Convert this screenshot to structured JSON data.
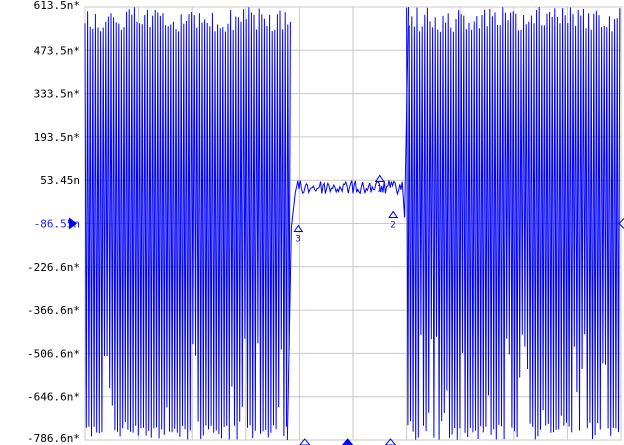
{
  "window": {
    "title": ""
  },
  "y_axis": {
    "labels": [
      "613.5n*",
      "473.5n*",
      "333.5n*",
      "193.5n*",
      "53.45n",
      "-86.55n",
      "-226.6n*",
      "-366.6n*",
      "-506.6n*",
      "-646.6n*",
      "-786.6n*"
    ],
    "reference_label_index": 5
  },
  "markers": [
    {
      "label": "1",
      "x_frac": 0.55
    },
    {
      "label": "2",
      "x_frac": 0.575
    },
    {
      "label": "3",
      "x_frac": 0.398
    }
  ],
  "chart_data": {
    "type": "line",
    "xlabel": "",
    "ylabel": "",
    "ylim": [
      -786.6,
      613.5
    ],
    "y_ticks": [
      613.5,
      473.5,
      333.5,
      193.5,
      53.45,
      -86.55,
      -226.6,
      -366.6,
      -506.6,
      -646.6,
      -786.6
    ],
    "grid": true,
    "series": [
      {
        "name": "",
        "noise_segments": [
          {
            "x_start": 0.0,
            "x_end": 0.385,
            "y_min": -786.6,
            "y_max": 613.5
          },
          {
            "x_start": 0.6,
            "x_end": 1.0,
            "y_min": -786.6,
            "y_max": 613.5
          }
        ],
        "signal_segment": {
          "x_start": 0.385,
          "x_end": 0.6,
          "level": 30.0
        }
      }
    ]
  },
  "colors": {
    "trace": "#0000ff",
    "grid": "#c8c8c8",
    "marker": "#0000ff",
    "ref_arrow": "#0000ff"
  }
}
